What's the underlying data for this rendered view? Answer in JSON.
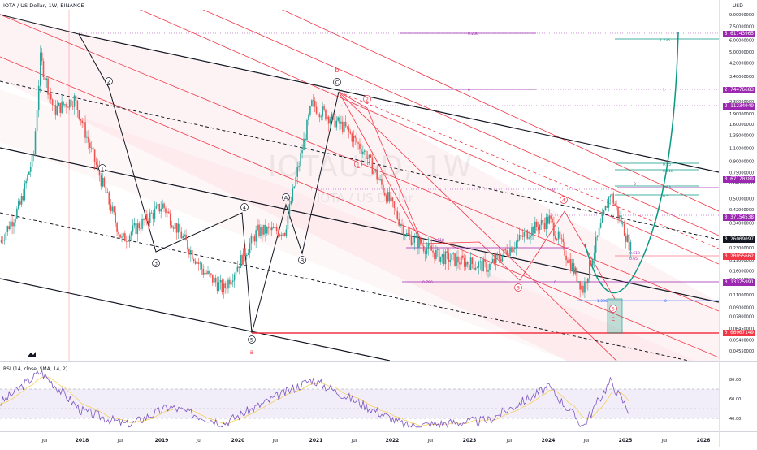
{
  "header": {
    "title": "IOTA / US Dollar, 1W, BINANCE",
    "currency": "USD"
  },
  "watermark": {
    "symbol": "IOTAUSD, 1W",
    "name": "IOTA / US Dollar"
  },
  "rsi_label": "RSI (14, close, SMA, 14, 2)",
  "colors": {
    "up": "#26a69a",
    "down": "#ef5350",
    "channel_red": "#f23645",
    "trend_black": "#131722",
    "fib_purple": "#9c27b0",
    "fib_teal": "#089981",
    "rsi_line": "#7e57c2",
    "rsi_band": "#ede7f6"
  },
  "price_axis_ticks": [
    "9.00000000",
    "7.50000000",
    "6.00000000",
    "5.00000000",
    "4.20000000",
    "3.40000000",
    "2.30000000",
    "1.90000000",
    "1.60000000",
    "1.35000000",
    "1.10000000",
    "0.90000000",
    "0.75000000",
    "0.64000000",
    "0.50000000",
    "0.42000000",
    "0.34000000",
    "0.23000000",
    "0.19000000",
    "0.16000000",
    "0.14000000",
    "0.11000000",
    "0.09000000",
    "0.07800000",
    "0.06450000",
    "0.05400000",
    "0.04550000",
    "0.03850000"
  ],
  "price_badges": [
    {
      "label": "6.61743965",
      "color": "#9c27b0"
    },
    {
      "label": "2.74476683",
      "color": "#9c27b0"
    },
    {
      "label": "2.11234049",
      "color": "#9c27b0"
    },
    {
      "label": "0.67170389",
      "color": "#9c27b0"
    },
    {
      "label": "0.37154538",
      "color": "#9c27b0"
    },
    {
      "label": "0.26009097",
      "color": "#131722"
    },
    {
      "label": "0.20055662",
      "color": "#f23645"
    },
    {
      "label": "0.13375991",
      "color": "#9c27b0"
    },
    {
      "label": "0.06007149",
      "color": "#f23645"
    }
  ],
  "rsi_axis_ticks": [
    "80.00",
    "60.00",
    "40.00"
  ],
  "time_axis_labels": [
    "Jul",
    "2018",
    "Jul",
    "2019",
    "Jul",
    "2020",
    "Jul",
    "2021",
    "Jul",
    "2022",
    "Jul",
    "2023",
    "Jul",
    "2024",
    "Jul",
    "2025",
    "Jul",
    "2026"
  ],
  "wave_labels": {
    "circled": [
      "2",
      "1",
      "3",
      "4",
      "5",
      "A",
      "B",
      "C",
      "1",
      "2",
      "3",
      "4",
      "5"
    ],
    "letters": [
      "a",
      "b",
      "c"
    ]
  },
  "fib_levels": [
    "0.236",
    "0",
    "1.236",
    "1",
    "0.65",
    "0.618",
    "0.54",
    "0.5",
    "0",
    "2.618",
    "0.618",
    "0.65",
    "0.786",
    "0",
    "1.236",
    "0",
    "0"
  ],
  "chart_data": {
    "type": "candlestick",
    "title": "IOTA / US Dollar, 1W, BINANCE",
    "y_scale": "log",
    "ylim": [
      0.0385,
      9.0
    ],
    "x_range": [
      "2017-06",
      "2026-03"
    ],
    "annotated_price_levels": [
      6.61743965,
      2.74476683,
      2.11234049,
      0.67170389,
      0.37154538,
      0.26009097,
      0.20055662,
      0.13375991,
      0.06007149
    ],
    "approx_weekly_close": [
      {
        "date": "2017-06",
        "close": 0.25
      },
      {
        "date": "2017-09",
        "close": 0.45
      },
      {
        "date": "2017-11",
        "close": 1.0
      },
      {
        "date": "2017-12",
        "close": 4.5
      },
      {
        "date": "2018-02",
        "close": 2.0
      },
      {
        "date": "2018-05",
        "close": 2.4
      },
      {
        "date": "2018-08",
        "close": 0.9
      },
      {
        "date": "2018-12",
        "close": 0.26
      },
      {
        "date": "2019-06",
        "close": 0.45
      },
      {
        "date": "2019-12",
        "close": 0.16
      },
      {
        "date": "2020-03",
        "close": 0.12
      },
      {
        "date": "2020-08",
        "close": 0.3
      },
      {
        "date": "2020-12",
        "close": 0.3
      },
      {
        "date": "2021-04",
        "close": 2.2
      },
      {
        "date": "2021-09",
        "close": 1.5
      },
      {
        "date": "2021-12",
        "close": 1.0
      },
      {
        "date": "2022-06",
        "close": 0.28
      },
      {
        "date": "2022-11",
        "close": 0.2
      },
      {
        "date": "2023-06",
        "close": 0.17
      },
      {
        "date": "2023-12",
        "close": 0.3
      },
      {
        "date": "2024-03",
        "close": 0.36
      },
      {
        "date": "2024-08",
        "close": 0.12
      },
      {
        "date": "2024-12",
        "close": 0.55
      },
      {
        "date": "2025-03",
        "close": 0.23
      }
    ],
    "rsi": {
      "label": "RSI (14, close, SMA, 14, 2)",
      "ylim": [
        30,
        90
      ],
      "band": [
        40,
        70
      ],
      "approx_values": [
        {
          "date": "2017-06",
          "value": 55
        },
        {
          "date": "2017-12",
          "value": 88
        },
        {
          "date": "2018-06",
          "value": 48
        },
        {
          "date": "2019-01",
          "value": 33
        },
        {
          "date": "2019-07",
          "value": 52
        },
        {
          "date": "2020-03",
          "value": 35
        },
        {
          "date": "2021-04",
          "value": 80
        },
        {
          "date": "2022-06",
          "value": 32
        },
        {
          "date": "2023-06",
          "value": 38
        },
        {
          "date": "2024-03",
          "value": 72
        },
        {
          "date": "2024-08",
          "value": 32
        },
        {
          "date": "2024-12",
          "value": 78
        },
        {
          "date": "2025-03",
          "value": 45
        }
      ]
    }
  }
}
